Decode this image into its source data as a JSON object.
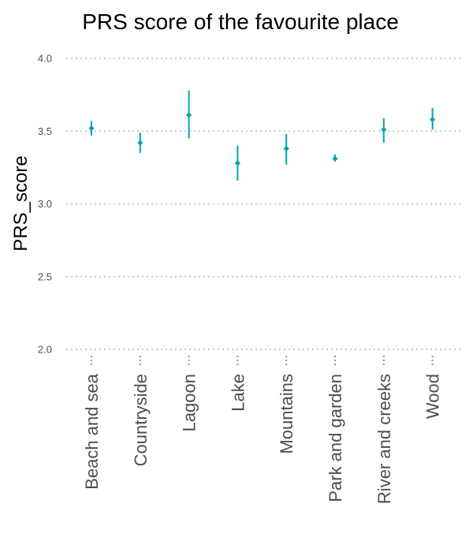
{
  "chart_data": {
    "type": "scatter",
    "title": "PRS score of the favourite place",
    "xlabel": "",
    "ylabel": "PRS_score",
    "ylim": [
      2.0,
      4.0
    ],
    "yticks": [
      "2.0",
      "2.5",
      "3.0",
      "3.5",
      "4.0"
    ],
    "grid": true,
    "categories": [
      "Beach and sea",
      "Countryside",
      "Lagoon",
      "Lake",
      "Mountains",
      "Park and garden",
      "River and creeks",
      "Wood"
    ],
    "values": [
      3.52,
      3.42,
      3.61,
      3.28,
      3.38,
      3.31,
      3.51,
      3.58
    ],
    "error_low": [
      3.47,
      3.35,
      3.45,
      3.16,
      3.27,
      3.29,
      3.42,
      3.51
    ],
    "error_high": [
      3.57,
      3.49,
      3.78,
      3.4,
      3.48,
      3.34,
      3.59,
      3.66
    ],
    "colors": {
      "point": "#00a5b0",
      "grid": "#c8c8c8",
      "text": "#4d4d4d"
    }
  }
}
